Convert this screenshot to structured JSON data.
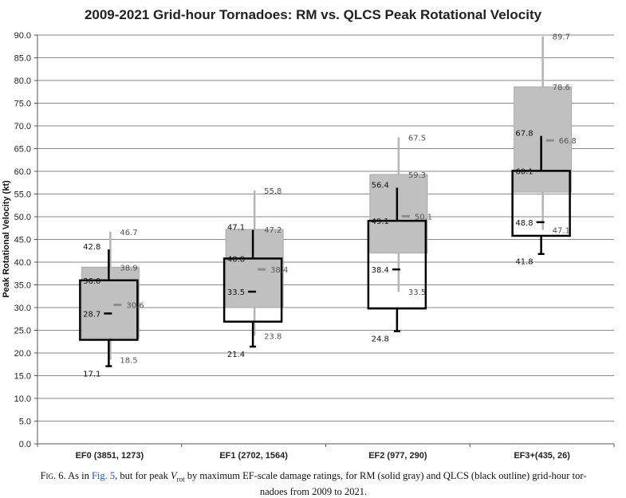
{
  "caption": {
    "fig_label": "Fig. 6.",
    "text_1": " As in ",
    "fig_ref": "Fig. 5",
    "text_2": ", but for peak ",
    "var_main": "V",
    "var_sub": "rot",
    "text_3": " by maximum EF-scale damage ratings, for RM (solid gray) and QLCS (black outline) grid-hour tor-",
    "text_4": "nadoes from 2009 to 2021."
  },
  "chart_data": {
    "type": "box",
    "title": "2009-2021 Grid-hour Tornadoes:  RM vs. QLCS Peak Rotational Velocity",
    "ylabel": "Peak Rotational Velocity (kt)",
    "xlabel": "",
    "ylim": [
      0,
      90
    ],
    "ytick_step": 5,
    "yticks": [
      "0.0",
      "5.0",
      "10.0",
      "15.0",
      "20.0",
      "25.0",
      "30.0",
      "35.0",
      "40.0",
      "45.0",
      "50.0",
      "55.0",
      "60.0",
      "65.0",
      "70.0",
      "75.0",
      "80.0",
      "85.0",
      "90.0"
    ],
    "grid": true,
    "categories": [
      "EF0 (3851, 1273)",
      "EF1 (2702, 1564)",
      "EF2 (977, 290)",
      "EF3+(435, 26)"
    ],
    "series": [
      {
        "name": "RM",
        "style": "solid gray",
        "color": "#c0c0c0",
        "boxes": [
          {
            "min": 18.5,
            "q1": 23.3,
            "median": 30.6,
            "q3": 38.9,
            "max": 46.7
          },
          {
            "min": 23.8,
            "q1": 30.0,
            "median": 38.4,
            "q3": 47.2,
            "max": 55.8
          },
          {
            "min": 33.5,
            "q1": 42.0,
            "median": 50.1,
            "q3": 59.3,
            "max": 67.5
          },
          {
            "min": 47.1,
            "q1": 55.4,
            "median": 66.8,
            "q3": 78.6,
            "max": 89.7
          }
        ],
        "labels": [
          [
            "46.7",
            "38.9",
            "30.6",
            "18.5"
          ],
          [
            "55.8",
            "47.2",
            "38.4",
            "23.8"
          ],
          [
            "67.5",
            "59.3",
            "50.1",
            "33.5"
          ],
          [
            "89.7",
            "78.6",
            "66.8",
            "47.1"
          ]
        ]
      },
      {
        "name": "QLCS",
        "style": "black outline",
        "color": "#000000",
        "boxes": [
          {
            "min": 17.1,
            "q1": 22.9,
            "median": 28.7,
            "q3": 36.0,
            "max": 42.8
          },
          {
            "min": 21.4,
            "q1": 26.9,
            "median": 33.5,
            "q3": 40.8,
            "max": 47.1
          },
          {
            "min": 24.8,
            "q1": 29.8,
            "median": 38.4,
            "q3": 49.1,
            "max": 56.4
          },
          {
            "min": 41.8,
            "q1": 45.8,
            "median": 48.8,
            "q3": 60.1,
            "max": 67.8
          }
        ],
        "labels": [
          [
            "42.8",
            "36.0",
            "28.7",
            "17.1"
          ],
          [
            "47.1",
            "40.8",
            "33.5",
            "21.4"
          ],
          [
            "56.4",
            "49.1",
            "38.4",
            "24.8"
          ],
          [
            "67.8",
            "60.1",
            "48.8",
            "41.8"
          ]
        ]
      }
    ]
  }
}
